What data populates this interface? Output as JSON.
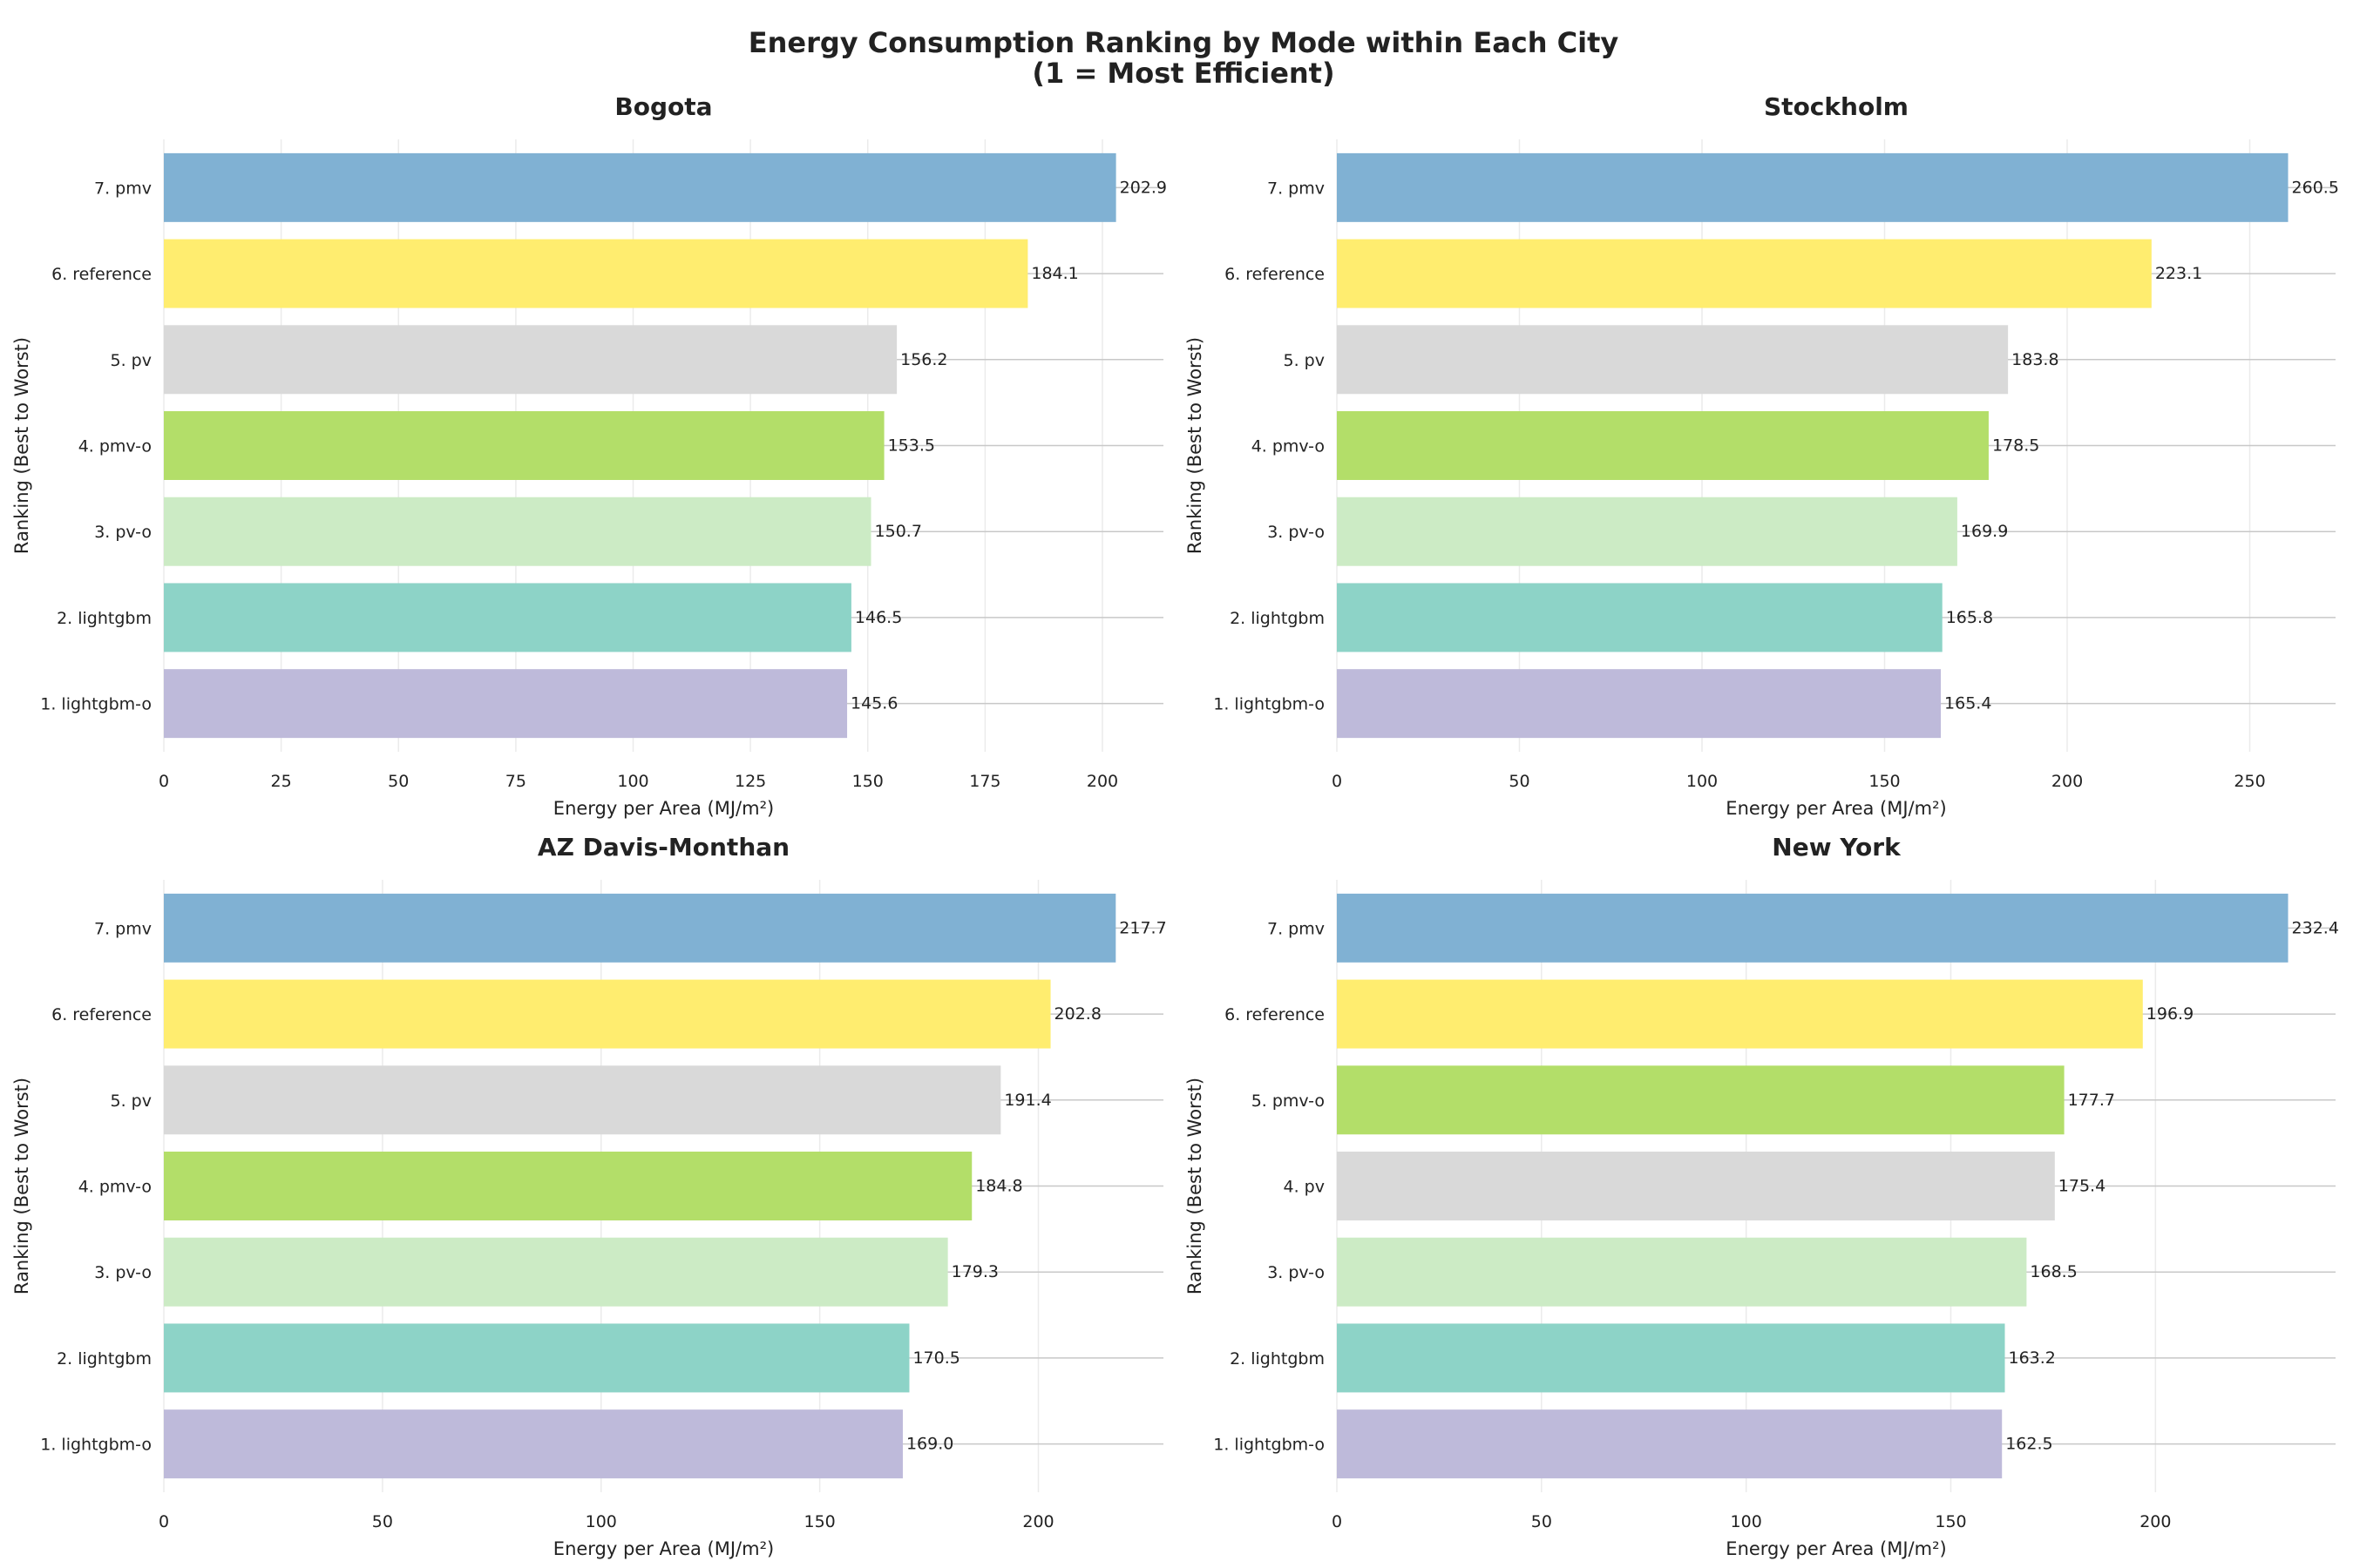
{
  "title_line1": "Energy Consumption Ranking by Mode within Each City",
  "title_line2": "(1 = Most Efficient)",
  "colors": {
    "pmv": "#80b1d3",
    "reference": "#ffed6f",
    "pv": "#d9d9d9",
    "pmv-o": "#b3de69",
    "pv-o": "#ccebc5",
    "lightgbm": "#8dd3c7",
    "lightgbm-o": "#bebada"
  },
  "chart_data": [
    {
      "type": "bar",
      "orientation": "horizontal",
      "title": "Bogota",
      "xlabel": "Energy per Area (MJ/m²)",
      "ylabel": "Ranking (Best to Worst)",
      "categories": [
        "1. lightgbm-o",
        "2. lightgbm",
        "3. pv-o",
        "4. pmv-o",
        "5. pv",
        "6. reference",
        "7. pmv"
      ],
      "modes": [
        "lightgbm-o",
        "lightgbm",
        "pv-o",
        "pmv-o",
        "pv",
        "reference",
        "pmv"
      ],
      "values": [
        145.6,
        146.5,
        150.7,
        153.5,
        156.2,
        184.1,
        202.9
      ],
      "data_labels": [
        "145.6",
        "146.5",
        "150.7",
        "153.5",
        "156.2",
        "184.1",
        "202.9"
      ],
      "xlim": [
        0,
        213
      ],
      "xticks": [
        0,
        25,
        50,
        75,
        100,
        125,
        150,
        175,
        200
      ],
      "grid": true
    },
    {
      "type": "bar",
      "orientation": "horizontal",
      "title": "Stockholm",
      "xlabel": "Energy per Area (MJ/m²)",
      "ylabel": "Ranking (Best to Worst)",
      "categories": [
        "1. lightgbm-o",
        "2. lightgbm",
        "3. pv-o",
        "4. pmv-o",
        "5. pv",
        "6. reference",
        "7. pmv"
      ],
      "modes": [
        "lightgbm-o",
        "lightgbm",
        "pv-o",
        "pmv-o",
        "pv",
        "reference",
        "pmv"
      ],
      "values": [
        165.4,
        165.8,
        169.9,
        178.5,
        183.8,
        223.1,
        260.5
      ],
      "data_labels": [
        "165.4",
        "165.8",
        "169.9",
        "178.5",
        "183.8",
        "223.1",
        "260.5"
      ],
      "xlim": [
        0,
        273.5
      ],
      "xticks": [
        0,
        50,
        100,
        150,
        200,
        250
      ],
      "grid": true
    },
    {
      "type": "bar",
      "orientation": "horizontal",
      "title": "AZ Davis-Monthan",
      "xlabel": "Energy per Area (MJ/m²)",
      "ylabel": "Ranking (Best to Worst)",
      "categories": [
        "1. lightgbm-o",
        "2. lightgbm",
        "3. pv-o",
        "4. pmv-o",
        "5. pv",
        "6. reference",
        "7. pmv"
      ],
      "modes": [
        "lightgbm-o",
        "lightgbm",
        "pv-o",
        "pmv-o",
        "pv",
        "reference",
        "pmv"
      ],
      "values": [
        169.0,
        170.5,
        179.3,
        184.8,
        191.4,
        202.8,
        217.7
      ],
      "data_labels": [
        "169.0",
        "170.5",
        "179.3",
        "184.8",
        "191.4",
        "202.8",
        "217.7"
      ],
      "xlim": [
        0,
        228.6
      ],
      "xticks": [
        0,
        50,
        100,
        150,
        200
      ],
      "grid": true
    },
    {
      "type": "bar",
      "orientation": "horizontal",
      "title": "New York",
      "xlabel": "Energy per Area (MJ/m²)",
      "ylabel": "Ranking (Best to Worst)",
      "categories": [
        "1. lightgbm-o",
        "2. lightgbm",
        "3. pv-o",
        "4. pv",
        "5. pmv-o",
        "6. reference",
        "7. pmv"
      ],
      "modes": [
        "lightgbm-o",
        "lightgbm",
        "pv-o",
        "pv",
        "pmv-o",
        "reference",
        "pmv"
      ],
      "values": [
        162.5,
        163.2,
        168.5,
        175.4,
        177.7,
        196.9,
        232.4
      ],
      "data_labels": [
        "162.5",
        "163.2",
        "168.5",
        "175.4",
        "177.7",
        "196.9",
        "232.4"
      ],
      "xlim": [
        0,
        244
      ],
      "xticks": [
        0,
        50,
        100,
        150,
        200
      ],
      "grid": true
    }
  ]
}
